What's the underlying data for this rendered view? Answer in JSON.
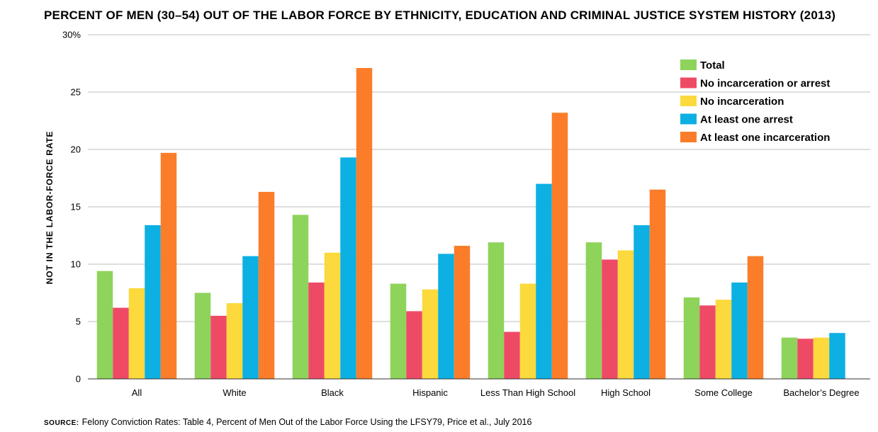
{
  "chart_data": {
    "type": "bar",
    "title": "PERCENT OF MEN (30–54) OUT OF THE LABOR FORCE BY ETHNICITY, EDUCATION AND CRIMINAL JUSTICE SYSTEM HISTORY (2013)",
    "ylabel": "NOT IN THE LABOR-FORCE RATE",
    "xlabel": "",
    "ylim": [
      0,
      30
    ],
    "yticks": [
      0,
      5,
      10,
      15,
      20,
      25,
      30
    ],
    "ytick_labels": [
      "0",
      "5",
      "10",
      "15",
      "20",
      "25",
      "30%"
    ],
    "grid": true,
    "legend_position": "top-right",
    "categories": [
      "All",
      "White",
      "Black",
      "Hispanic",
      "Less Than High School",
      "High School",
      "Some College",
      "Bachelor’s Degree"
    ],
    "series": [
      {
        "name": "Total",
        "color": "#8ed35a",
        "values": [
          9.4,
          7.5,
          14.3,
          8.3,
          11.9,
          11.9,
          7.1,
          3.6
        ]
      },
      {
        "name": "No incarceration or arrest",
        "color": "#ee4a66",
        "values": [
          6.2,
          5.5,
          8.4,
          5.9,
          4.1,
          10.4,
          6.4,
          3.5
        ]
      },
      {
        "name": "No incarceration",
        "color": "#fcd93c",
        "values": [
          7.9,
          6.6,
          11.0,
          7.8,
          8.3,
          11.2,
          6.9,
          3.6
        ]
      },
      {
        "name": "At least one arrest",
        "color": "#0cb0e2",
        "values": [
          13.4,
          10.7,
          19.3,
          10.9,
          17.0,
          13.4,
          8.4,
          4.0
        ]
      },
      {
        "name": "At least one incarceration",
        "color": "#fb7d2a",
        "values": [
          19.7,
          16.3,
          27.1,
          11.6,
          23.2,
          16.5,
          10.7,
          null
        ]
      }
    ]
  },
  "source": {
    "label": "source:",
    "text": "Felony Conviction Rates: Table 4, Percent of Men Out of the Labor Force Using the LFSY79, Price et al., July 2016"
  }
}
